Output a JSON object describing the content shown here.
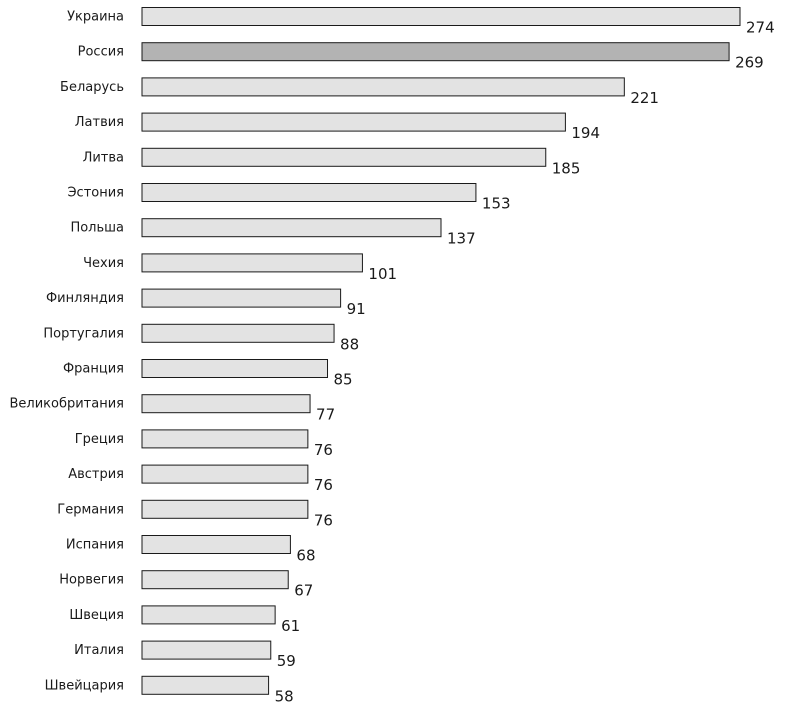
{
  "chart_data": {
    "type": "bar",
    "orientation": "horizontal",
    "title": "",
    "xlabel": "",
    "ylabel": "",
    "xlim": [
      0,
      274
    ],
    "grid": false,
    "colors": {
      "default_bar": "#e3e3e3",
      "highlight_bar": "#b3b3b3",
      "outline": "#1a1a1a"
    },
    "highlight": [
      "Россия"
    ],
    "categories": [
      "Украина",
      "Россия",
      "Беларусь",
      "Латвия",
      "Литва",
      "Эстония",
      "Польша",
      "Чехия",
      "Финляндия",
      "Португалия",
      "Франция",
      "Великобритания",
      "Греция",
      "Австрия",
      "Германия",
      "Испания",
      "Норвегия",
      "Швеция",
      "Италия",
      "Швейцария"
    ],
    "values": [
      274,
      269,
      221,
      194,
      185,
      153,
      137,
      101,
      91,
      88,
      85,
      77,
      76,
      76,
      76,
      68,
      67,
      61,
      59,
      58
    ]
  }
}
